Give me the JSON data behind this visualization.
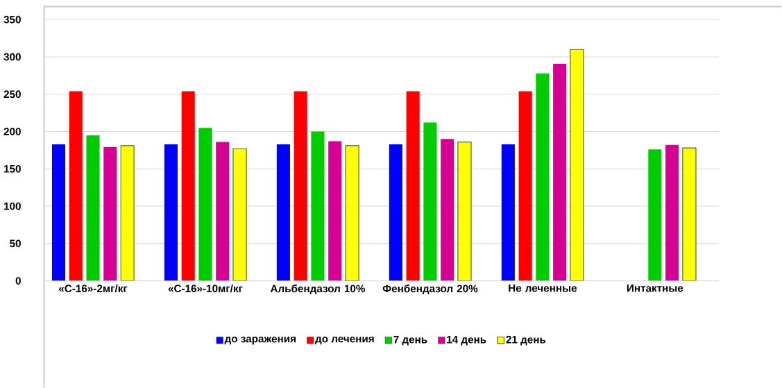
{
  "chart_data": {
    "type": "bar",
    "categories": [
      "«С-16»-2мг/кг",
      "«С-16»-10мг/кг",
      "Альбендазол 10%",
      "Фенбендазол 20%",
      "Не леченные",
      "Интактные"
    ],
    "series": [
      {
        "name": "до заражения",
        "color": "#0000ff",
        "values": [
          183,
          183,
          183,
          183,
          183,
          null
        ]
      },
      {
        "name": "до лечения",
        "color": "#ff0000",
        "values": [
          254,
          254,
          254,
          254,
          254,
          null
        ]
      },
      {
        "name": "7 день",
        "color": "#00cc00",
        "values": [
          195,
          205,
          200,
          212,
          278,
          176
        ]
      },
      {
        "name": "14 день",
        "color": "#d60093",
        "values": [
          179,
          186,
          187,
          190,
          291,
          182
        ]
      },
      {
        "name": "21 день",
        "color": "#ffff00",
        "values": [
          181,
          177,
          181,
          186,
          310,
          178
        ]
      }
    ],
    "ylim": [
      0,
      350
    ],
    "yticks": [
      0,
      50,
      100,
      150,
      200,
      250,
      300,
      350
    ],
    "grid": "y",
    "legend": "bottom"
  }
}
